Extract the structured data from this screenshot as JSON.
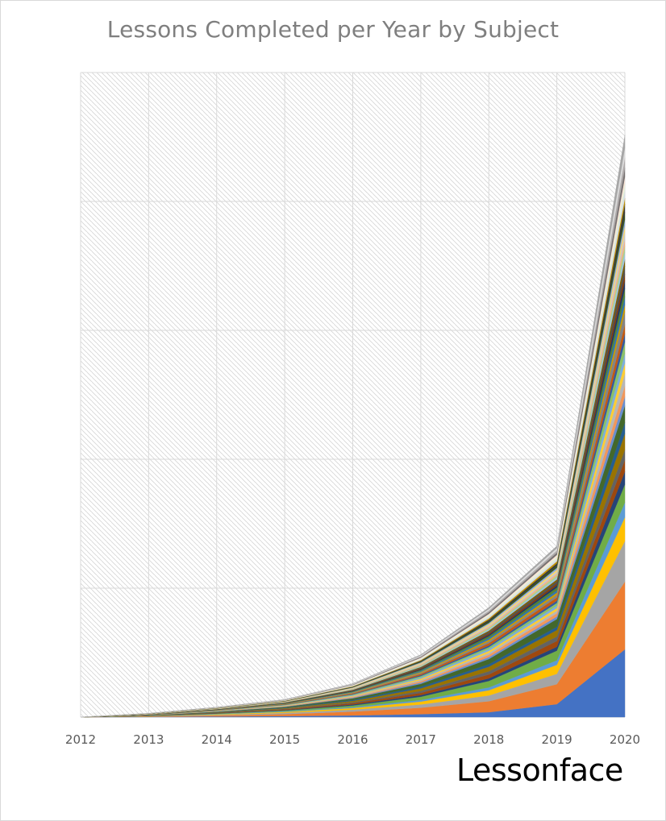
{
  "chart_data": {
    "type": "area",
    "stacked": true,
    "title": "Lessons Completed per Year by Subject",
    "xlabel": "",
    "ylabel": "",
    "x": [
      "2012",
      "2013",
      "2014",
      "2015",
      "2016",
      "2017",
      "2018",
      "2019",
      "2020"
    ],
    "ylim": [
      0,
      100
    ],
    "y_gridlines": [
      0,
      20,
      40,
      60,
      80,
      100
    ],
    "y_tick_labels_visible": false,
    "grid": true,
    "legend": "none",
    "series": [
      {
        "color": "#4472C4",
        "values": [
          0,
          0.03,
          0.1,
          0.15,
          0.25,
          0.45,
          0.75,
          2,
          10.5
        ]
      },
      {
        "color": "#ED7D31",
        "values": [
          0,
          0.05,
          0.15,
          0.3,
          0.6,
          1.0,
          1.7,
          3.1,
          10.5
        ]
      },
      {
        "color": "#A5A5A5",
        "values": [
          0,
          0.03,
          0.1,
          0.2,
          0.3,
          0.5,
          0.9,
          1.6,
          6.3
        ]
      },
      {
        "color": "#FFC000",
        "values": [
          0,
          0.03,
          0.08,
          0.15,
          0.25,
          0.45,
          0.8,
          1.4,
          3.7
        ]
      },
      {
        "color": "#5B9BD5",
        "values": [
          0,
          0.02,
          0.06,
          0.1,
          0.15,
          0.25,
          0.45,
          0.7,
          2.3
        ]
      },
      {
        "color": "#70AD47",
        "values": [
          0,
          0.02,
          0.06,
          0.12,
          0.25,
          0.5,
          1.0,
          1.5,
          2.8
        ]
      },
      {
        "color": "#264478",
        "values": [
          0,
          0.01,
          0.04,
          0.08,
          0.15,
          0.25,
          0.4,
          0.6,
          2.0
        ]
      },
      {
        "color": "#9E480E",
        "values": [
          0,
          0.02,
          0.05,
          0.1,
          0.2,
          0.35,
          0.6,
          0.9,
          1.8
        ]
      },
      {
        "color": "#636363",
        "values": [
          0,
          0.01,
          0.05,
          0.08,
          0.15,
          0.3,
          0.5,
          0.7,
          1.6
        ]
      },
      {
        "color": "#997300",
        "values": [
          0,
          0.02,
          0.05,
          0.1,
          0.2,
          0.4,
          0.7,
          1.0,
          2.5
        ]
      },
      {
        "color": "#255E91",
        "values": [
          0,
          0.01,
          0.04,
          0.08,
          0.15,
          0.25,
          0.4,
          0.5,
          1.7
        ]
      },
      {
        "color": "#43682B",
        "values": [
          0,
          0.02,
          0.06,
          0.12,
          0.25,
          0.45,
          0.8,
          1.2,
          2.6
        ]
      },
      {
        "color": "#698ED0",
        "values": [
          0,
          0.01,
          0.03,
          0.05,
          0.1,
          0.2,
          0.3,
          0.4,
          1.4
        ]
      },
      {
        "color": "#F1975A",
        "values": [
          0,
          0.01,
          0.03,
          0.06,
          0.1,
          0.2,
          0.35,
          0.5,
          1.7
        ]
      },
      {
        "color": "#B7B7B7",
        "values": [
          0,
          0.01,
          0.03,
          0.05,
          0.1,
          0.2,
          0.3,
          0.4,
          1.9
        ]
      },
      {
        "color": "#FFCD33",
        "values": [
          0,
          0.01,
          0.03,
          0.05,
          0.1,
          0.2,
          0.3,
          0.4,
          1.6
        ]
      },
      {
        "color": "#7CAFDD",
        "values": [
          0,
          0.01,
          0.03,
          0.05,
          0.1,
          0.2,
          0.3,
          0.4,
          1.5
        ]
      },
      {
        "color": "#8CC168",
        "values": [
          0,
          0.01,
          0.03,
          0.05,
          0.1,
          0.2,
          0.3,
          0.4,
          1.8
        ]
      },
      {
        "color": "#335AA1",
        "values": [
          0,
          0.01,
          0.02,
          0.04,
          0.08,
          0.15,
          0.25,
          0.35,
          1.3
        ]
      },
      {
        "color": "#C55A11",
        "values": [
          0,
          0.01,
          0.03,
          0.05,
          0.1,
          0.2,
          0.35,
          0.5,
          1.4
        ]
      },
      {
        "color": "#848484",
        "values": [
          0,
          0.01,
          0.02,
          0.04,
          0.08,
          0.15,
          0.3,
          0.4,
          2.0
        ]
      },
      {
        "color": "#CC9A00",
        "values": [
          0,
          0.01,
          0.02,
          0.04,
          0.08,
          0.15,
          0.25,
          0.35,
          1.1
        ]
      },
      {
        "color": "#2E75B6",
        "values": [
          0,
          0.01,
          0.02,
          0.04,
          0.08,
          0.15,
          0.25,
          0.35,
          1.2
        ]
      },
      {
        "color": "#548235",
        "values": [
          0,
          0.01,
          0.02,
          0.04,
          0.08,
          0.15,
          0.3,
          0.45,
          1.3
        ]
      },
      {
        "color": "#203864",
        "values": [
          0,
          0.01,
          0.02,
          0.03,
          0.06,
          0.12,
          0.2,
          0.3,
          1.2
        ]
      },
      {
        "color": "#843C0C",
        "values": [
          0,
          0.01,
          0.02,
          0.03,
          0.06,
          0.12,
          0.2,
          0.3,
          1.0
        ]
      },
      {
        "color": "#525252",
        "values": [
          0,
          0.01,
          0.02,
          0.03,
          0.06,
          0.12,
          0.25,
          0.35,
          1.3
        ]
      },
      {
        "color": "#7F6000",
        "values": [
          0,
          0.01,
          0.02,
          0.03,
          0.06,
          0.12,
          0.2,
          0.3,
          1.0
        ]
      },
      {
        "color": "#9DC3E6",
        "values": [
          0,
          0.01,
          0.02,
          0.03,
          0.06,
          0.12,
          0.2,
          0.3,
          1.1
        ]
      },
      {
        "color": "#A9D18E",
        "values": [
          0,
          0.01,
          0.02,
          0.03,
          0.06,
          0.12,
          0.2,
          0.3,
          1.0
        ]
      },
      {
        "color": "#F4B183",
        "values": [
          0,
          0.01,
          0.02,
          0.03,
          0.06,
          0.12,
          0.2,
          0.3,
          1.0
        ]
      },
      {
        "color": "#C9C9C9",
        "values": [
          0,
          0.01,
          0.02,
          0.03,
          0.06,
          0.12,
          0.2,
          0.3,
          1.2
        ]
      },
      {
        "color": "#FFD966",
        "values": [
          0,
          0.01,
          0.02,
          0.03,
          0.06,
          0.12,
          0.2,
          0.3,
          0.9
        ]
      },
      {
        "color": "#8FAADC",
        "values": [
          0,
          0.01,
          0.02,
          0.03,
          0.06,
          0.12,
          0.2,
          0.3,
          1.0
        ]
      },
      {
        "color": "#385723",
        "values": [
          0,
          0.01,
          0.02,
          0.03,
          0.06,
          0.12,
          0.25,
          0.35,
          1.1
        ]
      },
      {
        "color": "#3A3A3A",
        "values": [
          0,
          0.01,
          0.02,
          0.03,
          0.06,
          0.12,
          0.25,
          0.35,
          1.3
        ]
      },
      {
        "color": "#BF9000",
        "values": [
          0,
          0.01,
          0.02,
          0.03,
          0.06,
          0.1,
          0.2,
          0.3,
          0.9
        ]
      },
      {
        "color": "#D6DCE5",
        "values": [
          0,
          0.01,
          0.02,
          0.03,
          0.06,
          0.12,
          0.25,
          0.35,
          1.2
        ]
      },
      {
        "color": "#E2F0D9",
        "values": [
          0,
          0.01,
          0.02,
          0.03,
          0.06,
          0.12,
          0.25,
          0.35,
          1.1
        ]
      },
      {
        "color": "#FBE5D6",
        "values": [
          0,
          0.01,
          0.02,
          0.03,
          0.06,
          0.12,
          0.2,
          0.3,
          1.0
        ]
      },
      {
        "color": "#767171",
        "values": [
          0,
          0.01,
          0.02,
          0.03,
          0.06,
          0.12,
          0.25,
          0.35,
          1.4
        ]
      },
      {
        "color": "#AFABAB",
        "values": [
          0,
          0.01,
          0.02,
          0.03,
          0.06,
          0.12,
          0.25,
          0.35,
          1.6
        ]
      },
      {
        "color": "#DBDBDB",
        "values": [
          0,
          0.01,
          0.02,
          0.03,
          0.06,
          0.12,
          0.25,
          0.35,
          1.5
        ]
      },
      {
        "color": "#A6A6A6",
        "values": [
          0,
          0.01,
          0.02,
          0.03,
          0.06,
          0.12,
          0.25,
          0.35,
          2.0
        ]
      }
    ]
  },
  "branding": {
    "logo_text": "Lessonface"
  }
}
